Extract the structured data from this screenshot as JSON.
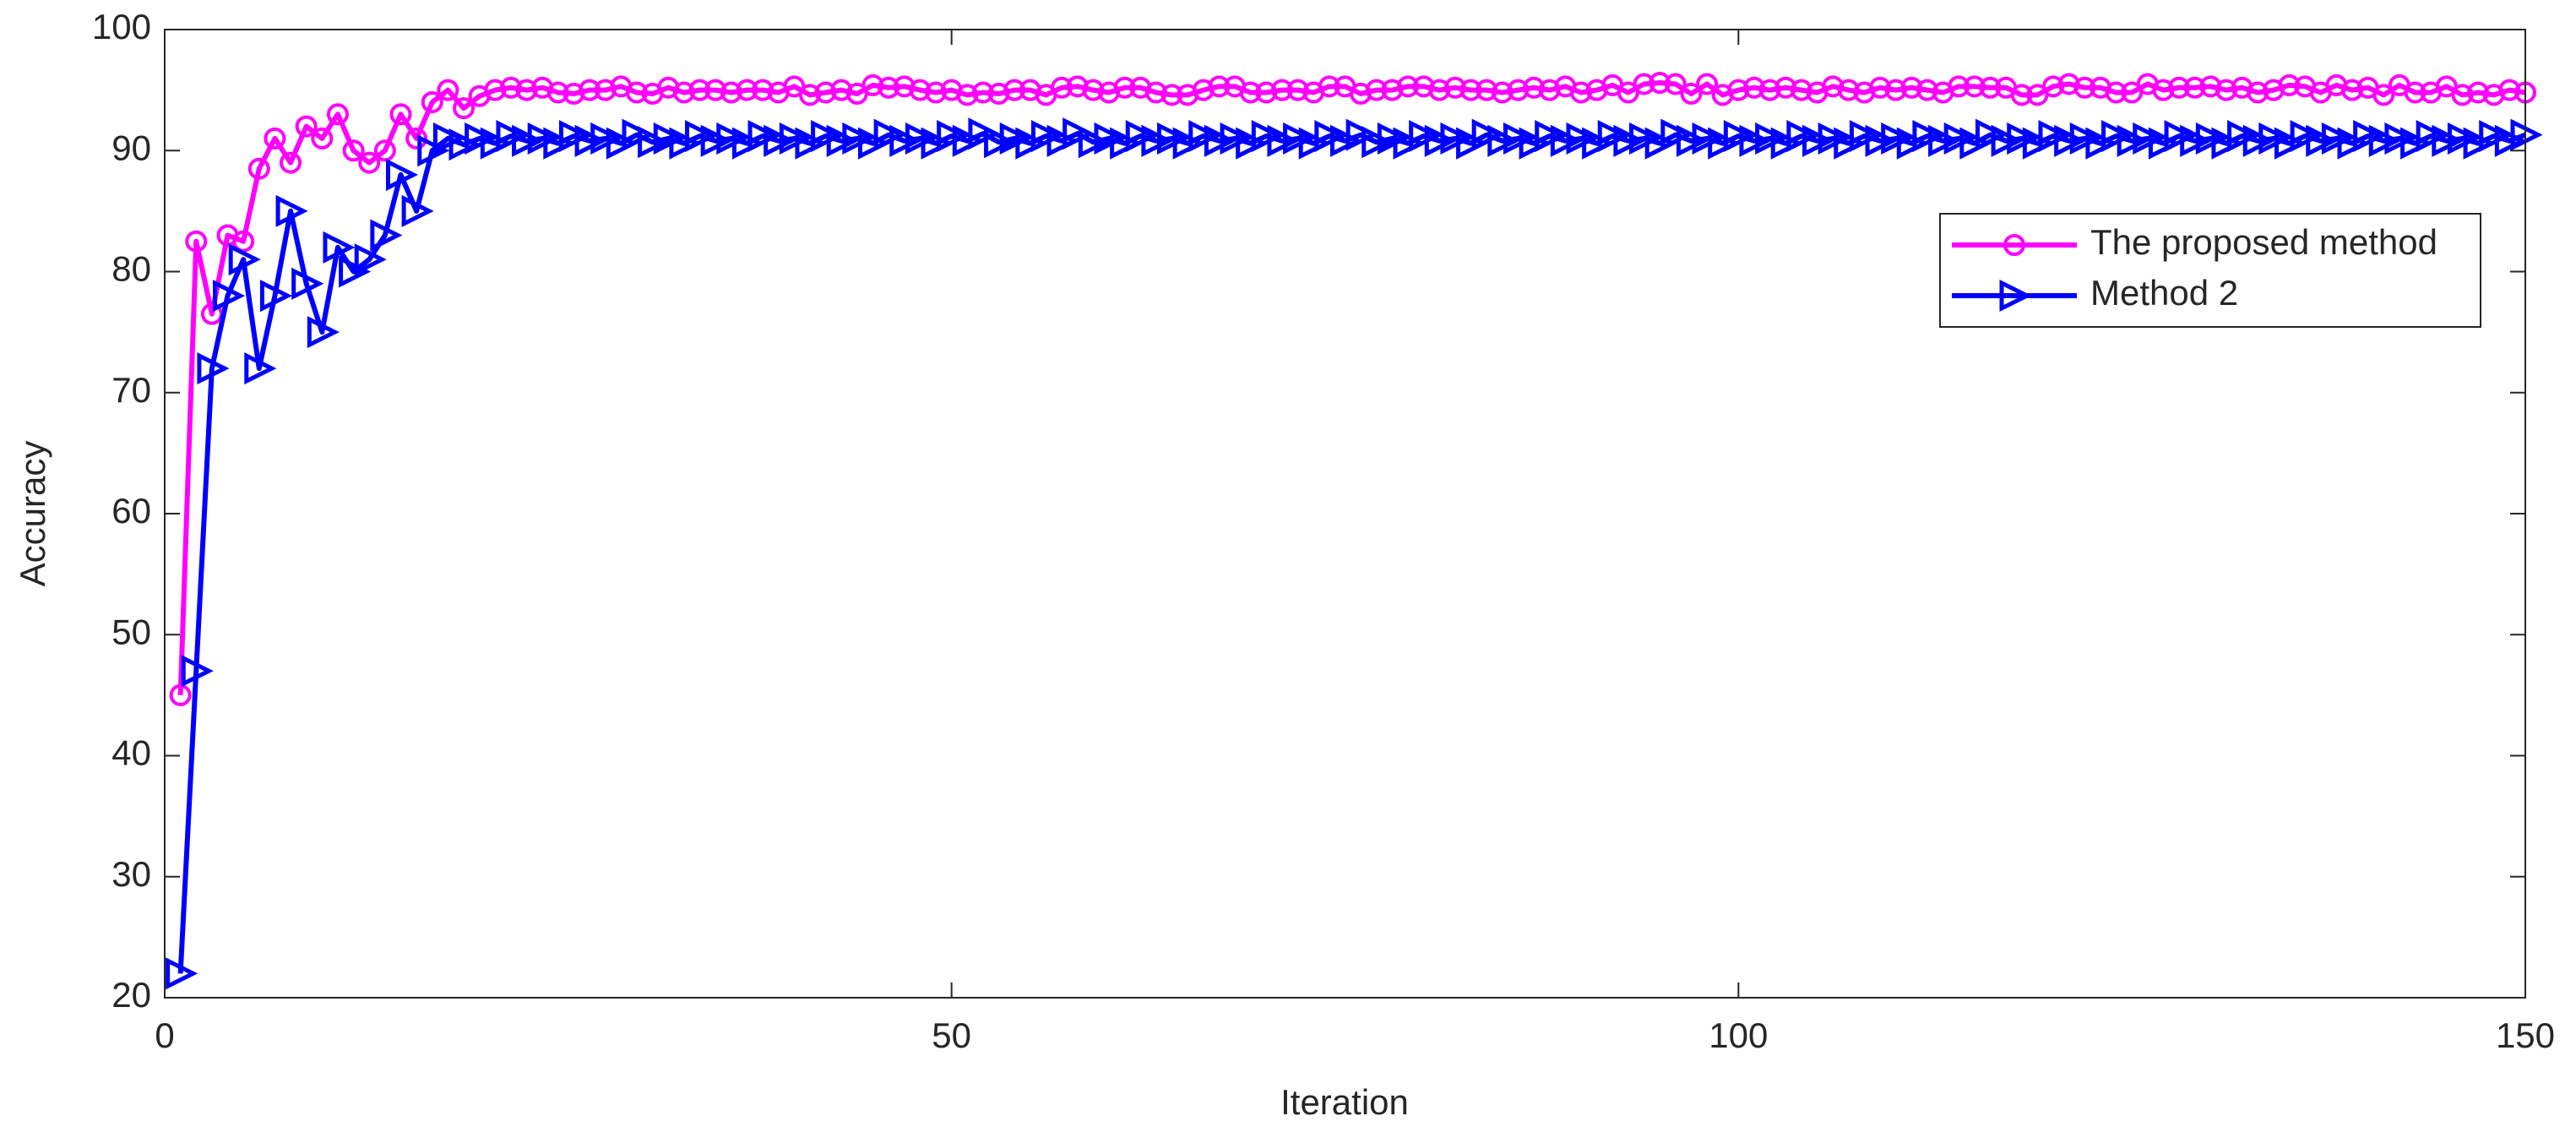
{
  "chart_data": {
    "type": "line",
    "x_label": "Iteration",
    "y_label": "Accuracy",
    "x": [
      1,
      2,
      3,
      4,
      5,
      6,
      7,
      8,
      9,
      10,
      11,
      12,
      13,
      14,
      15,
      16,
      17,
      18,
      19,
      20,
      21,
      22,
      23,
      24,
      25,
      26,
      27,
      28,
      29,
      30,
      31,
      32,
      33,
      34,
      35,
      36,
      37,
      38,
      39,
      40,
      41,
      42,
      43,
      44,
      45,
      46,
      47,
      48,
      49,
      50,
      51,
      52,
      53,
      54,
      55,
      56,
      57,
      58,
      59,
      60,
      61,
      62,
      63,
      64,
      65,
      66,
      67,
      68,
      69,
      70,
      71,
      72,
      73,
      74,
      75,
      76,
      77,
      78,
      79,
      80,
      81,
      82,
      83,
      84,
      85,
      86,
      87,
      88,
      89,
      90,
      91,
      92,
      93,
      94,
      95,
      96,
      97,
      98,
      99,
      100,
      101,
      102,
      103,
      104,
      105,
      106,
      107,
      108,
      109,
      110,
      111,
      112,
      113,
      114,
      115,
      116,
      117,
      118,
      119,
      120,
      121,
      122,
      123,
      124,
      125,
      126,
      127,
      128,
      129,
      130,
      131,
      132,
      133,
      134,
      135,
      136,
      137,
      138,
      139,
      140,
      141,
      142,
      143,
      144,
      145,
      146,
      147,
      148,
      149,
      150
    ],
    "series": [
      {
        "name": "The proposed method",
        "color": "#ff00ff",
        "marker": "circle",
        "values": [
          45,
          82.5,
          76.5,
          83,
          82.5,
          88.5,
          91,
          89,
          92,
          91,
          93,
          90,
          89,
          90,
          93,
          91,
          94,
          95,
          93.5,
          94.5,
          95,
          95.2,
          95,
          95.2,
          94.8,
          94.7,
          95,
          95,
          95.3,
          94.8,
          94.7,
          95.2,
          94.8,
          95,
          95,
          94.8,
          95,
          95,
          94.8,
          95.3,
          94.6,
          94.8,
          95,
          94.7,
          95.4,
          95.2,
          95.3,
          95,
          94.8,
          95,
          94.6,
          94.8,
          94.7,
          95,
          95,
          94.6,
          95.2,
          95.3,
          95,
          94.8,
          95.2,
          95.2,
          94.8,
          94.6,
          94.6,
          95,
          95.3,
          95.3,
          94.8,
          94.8,
          95,
          95,
          94.8,
          95.3,
          95.3,
          94.7,
          95,
          95,
          95.3,
          95.3,
          95,
          95.2,
          95,
          95,
          94.8,
          95,
          95.2,
          95,
          95.3,
          94.8,
          95,
          95.4,
          94.8,
          95.5,
          95.6,
          95.5,
          94.7,
          95.5,
          94.6,
          95,
          95.2,
          95,
          95.2,
          95,
          94.8,
          95.3,
          95,
          94.8,
          95.2,
          95,
          95.2,
          95,
          94.8,
          95.3,
          95.3,
          95.2,
          95.2,
          94.6,
          94.6,
          95.3,
          95.5,
          95.2,
          95.2,
          94.8,
          94.8,
          95.5,
          95,
          95.2,
          95.2,
          95.3,
          95,
          95.2,
          94.8,
          95,
          95.4,
          95.3,
          94.8,
          95.4,
          95,
          95.2,
          94.6,
          95.4,
          94.8,
          94.8,
          95.3,
          94.6,
          94.8,
          94.6,
          95,
          94.8
        ]
      },
      {
        "name": "Method 2",
        "color": "#0000ff",
        "marker": "triangle-right",
        "values": [
          22,
          47,
          72,
          78,
          81,
          72,
          78,
          85,
          79,
          75,
          82,
          80,
          81,
          83,
          88,
          85,
          90,
          91,
          90.5,
          91,
          90.6,
          91.2,
          90.8,
          91,
          90.6,
          91.2,
          90.8,
          91,
          90.6,
          91.3,
          90.7,
          91,
          90.6,
          91.2,
          90.8,
          91,
          90.6,
          91.2,
          90.8,
          91,
          90.6,
          91.2,
          90.8,
          91,
          90.6,
          91.3,
          90.8,
          91,
          90.6,
          91.2,
          90.8,
          91.4,
          90.7,
          91,
          90.6,
          91.2,
          90.8,
          91.4,
          90.7,
          91,
          90.6,
          91.2,
          90.8,
          91,
          90.6,
          91.2,
          90.8,
          91,
          90.6,
          91.2,
          90.8,
          91,
          90.6,
          91.2,
          90.8,
          91.3,
          90.7,
          91,
          90.6,
          91.2,
          90.8,
          91,
          90.6,
          91.3,
          90.8,
          91,
          90.6,
          91.2,
          90.8,
          91,
          90.6,
          91.2,
          90.8,
          91,
          90.6,
          91.3,
          90.8,
          91,
          90.6,
          91.2,
          90.8,
          91,
          90.6,
          91.2,
          90.8,
          91,
          90.6,
          91.2,
          90.8,
          91,
          90.6,
          91.2,
          90.8,
          91,
          90.6,
          91.3,
          90.8,
          91,
          90.6,
          91.2,
          90.8,
          91,
          90.6,
          91.2,
          90.8,
          91,
          90.6,
          91.2,
          90.8,
          91,
          90.6,
          91.2,
          90.8,
          91,
          90.6,
          91.2,
          90.8,
          91,
          90.6,
          91.2,
          90.8,
          91,
          90.6,
          91.2,
          90.8,
          91,
          90.6,
          91.2,
          90.8,
          91.3
        ]
      }
    ],
    "xlim": [
      0,
      150
    ],
    "xticks": [
      0,
      50,
      100,
      150
    ],
    "ylim": [
      20,
      100
    ],
    "yticks": [
      20,
      30,
      40,
      50,
      60,
      70,
      80,
      90,
      100
    ],
    "grid": false,
    "legend": "upper right"
  }
}
